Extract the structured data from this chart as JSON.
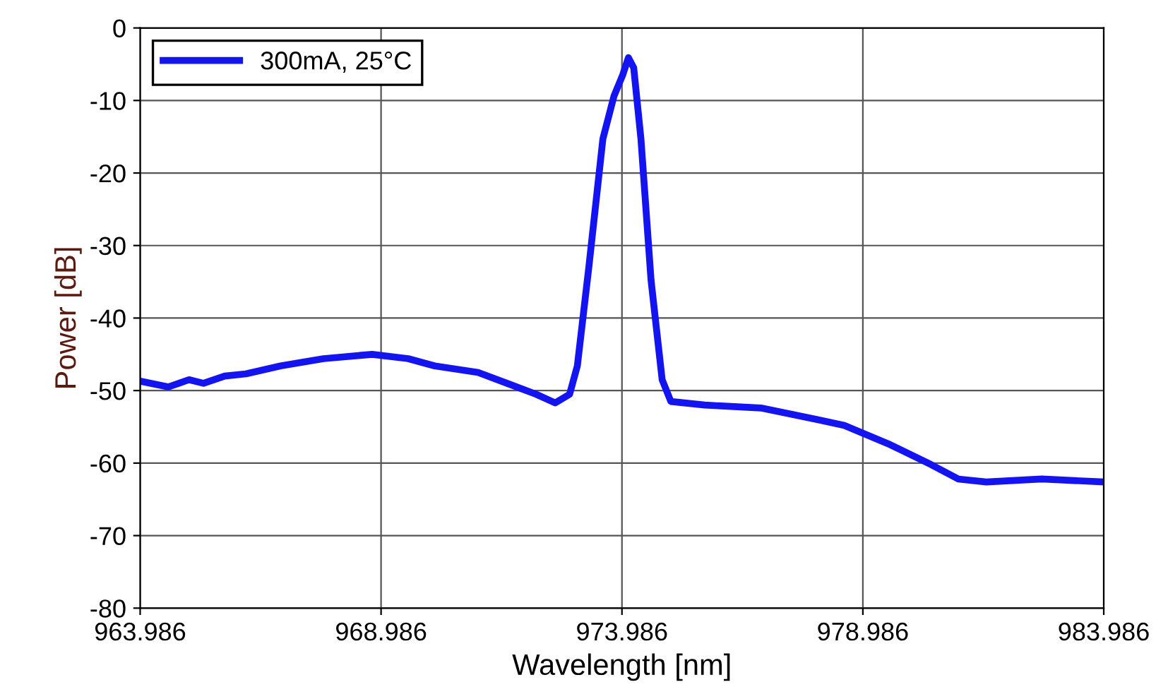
{
  "chart_data": {
    "type": "line",
    "xlabel": "Wavelength [nm]",
    "ylabel": "Power [dB]",
    "xlim": [
      963.986,
      983.986
    ],
    "xticks": [
      963.986,
      968.986,
      973.986,
      978.986,
      983.986
    ],
    "ylim": [
      -80,
      0
    ],
    "yticks": [
      -80,
      -70,
      -60,
      -50,
      -40,
      -30,
      -20,
      -10,
      0
    ],
    "grid": true,
    "legend": "top left",
    "line_style": "solid",
    "marker": "none",
    "series": [
      {
        "name": "300mA, 25°C",
        "color": "#1414f0",
        "x": [
          963.986,
          964.57,
          965.0,
          965.3,
          965.74,
          966.18,
          966.9,
          967.79,
          968.8,
          969.55,
          970.1,
          971.0,
          971.6,
          972.2,
          972.6,
          972.9,
          973.06,
          973.3,
          973.59,
          973.82,
          974.0,
          974.12,
          974.23,
          974.38,
          974.59,
          974.82,
          975.0,
          975.7,
          976.87,
          978.04,
          978.6,
          979.5,
          980.4,
          980.97,
          981.55,
          982.7,
          983.986
        ],
        "values": [
          -48.7,
          -49.5,
          -48.5,
          -49,
          -48,
          -47.7,
          -46.6,
          -45.6,
          -45,
          -45.6,
          -46.6,
          -47.5,
          -49,
          -50.5,
          -51.7,
          -50.5,
          -46.6,
          -32.9,
          -15.3,
          -9.4,
          -6.5,
          -4.1,
          -5.5,
          -15.3,
          -34.8,
          -48.5,
          -51.5,
          -52,
          -52.4,
          -54,
          -54.8,
          -57.3,
          -60.2,
          -62.2,
          -62.6,
          -62.2,
          -62.6
        ]
      }
    ]
  }
}
